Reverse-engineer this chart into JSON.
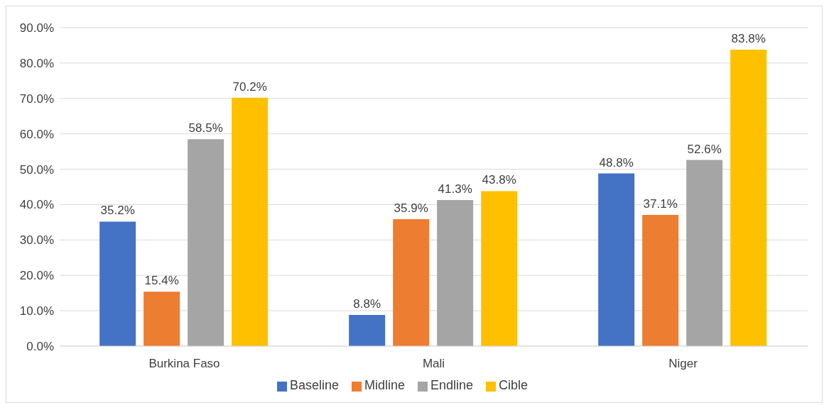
{
  "chart_data": {
    "type": "bar",
    "categories": [
      "Burkina Faso",
      "Mali",
      "Niger"
    ],
    "series": [
      {
        "name": "Baseline",
        "color": "#4472c4",
        "values": [
          35.2,
          8.8,
          48.8
        ],
        "value_labels": [
          "35.2%",
          "8.8%",
          "48.8%"
        ]
      },
      {
        "name": "Midline",
        "color": "#ed7d31",
        "values": [
          15.4,
          35.9,
          37.1
        ],
        "value_labels": [
          "15.4%",
          "35.9%",
          "37.1%"
        ]
      },
      {
        "name": "Endline",
        "color": "#a5a5a5",
        "values": [
          58.5,
          41.3,
          52.6
        ],
        "value_labels": [
          "58.5%",
          "41.3%",
          "52.6%"
        ]
      },
      {
        "name": "Cible",
        "color": "#ffc000",
        "values": [
          70.2,
          43.8,
          83.8
        ],
        "value_labels": [
          "70.2%",
          "43.8%",
          "83.8%"
        ]
      }
    ],
    "ylim": [
      0,
      90
    ],
    "yticks": [
      {
        "value": 0,
        "label": "0.0%"
      },
      {
        "value": 10,
        "label": "10.0%"
      },
      {
        "value": 20,
        "label": "20.0%"
      },
      {
        "value": 30,
        "label": "30.0%"
      },
      {
        "value": 40,
        "label": "40.0%"
      },
      {
        "value": 50,
        "label": "50.0%"
      },
      {
        "value": 60,
        "label": "60.0%"
      },
      {
        "value": 70,
        "label": "70.0%"
      },
      {
        "value": 80,
        "label": "80.0%"
      },
      {
        "value": 90,
        "label": "90.0%"
      }
    ],
    "grid": "y",
    "legend": "bottom"
  }
}
